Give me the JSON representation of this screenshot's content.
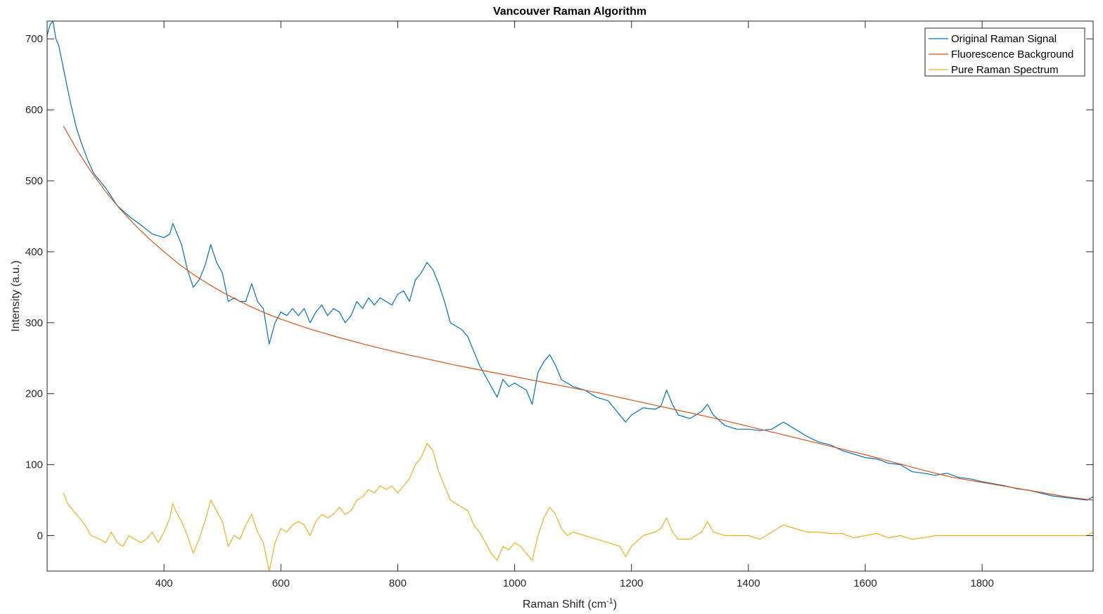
{
  "chart_data": {
    "type": "line",
    "title": "Vancouver Raman Algorithm",
    "xlabel": "Raman Shift (cm",
    "xlabel_sup": "-1",
    "xlabel_end": ")",
    "ylabel": "Intensity (a.u.)",
    "xlim": [
      200,
      1990
    ],
    "ylim": [
      -50,
      725
    ],
    "xticks": [
      400,
      600,
      800,
      1000,
      1200,
      1400,
      1600,
      1800
    ],
    "yticks": [
      0,
      100,
      200,
      300,
      400,
      500,
      600,
      700
    ],
    "legend_position": "top-right",
    "series": [
      {
        "name": "Original Raman Signal",
        "color": "#0072BD",
        "points": [
          [
            200,
            705
          ],
          [
            205,
            720
          ],
          [
            210,
            725
          ],
          [
            215,
            700
          ],
          [
            220,
            690
          ],
          [
            225,
            670
          ],
          [
            230,
            650
          ],
          [
            240,
            610
          ],
          [
            250,
            575
          ],
          [
            260,
            550
          ],
          [
            270,
            528
          ],
          [
            280,
            510
          ],
          [
            290,
            500
          ],
          [
            300,
            490
          ],
          [
            320,
            465
          ],
          [
            340,
            450
          ],
          [
            360,
            438
          ],
          [
            380,
            425
          ],
          [
            400,
            420
          ],
          [
            410,
            425
          ],
          [
            415,
            440
          ],
          [
            420,
            430
          ],
          [
            430,
            410
          ],
          [
            440,
            375
          ],
          [
            450,
            350
          ],
          [
            460,
            360
          ],
          [
            470,
            380
          ],
          [
            480,
            410
          ],
          [
            490,
            385
          ],
          [
            500,
            370
          ],
          [
            510,
            330
          ],
          [
            520,
            335
          ],
          [
            530,
            330
          ],
          [
            540,
            330
          ],
          [
            550,
            355
          ],
          [
            560,
            330
          ],
          [
            570,
            320
          ],
          [
            580,
            270
          ],
          [
            590,
            300
          ],
          [
            600,
            315
          ],
          [
            610,
            310
          ],
          [
            620,
            320
          ],
          [
            630,
            310
          ],
          [
            640,
            320
          ],
          [
            650,
            300
          ],
          [
            660,
            315
          ],
          [
            670,
            325
          ],
          [
            680,
            310
          ],
          [
            690,
            320
          ],
          [
            700,
            315
          ],
          [
            710,
            300
          ],
          [
            720,
            310
          ],
          [
            730,
            330
          ],
          [
            740,
            320
          ],
          [
            750,
            335
          ],
          [
            760,
            325
          ],
          [
            770,
            335
          ],
          [
            780,
            330
          ],
          [
            790,
            325
          ],
          [
            800,
            340
          ],
          [
            810,
            345
          ],
          [
            820,
            330
          ],
          [
            830,
            360
          ],
          [
            840,
            370
          ],
          [
            850,
            385
          ],
          [
            860,
            375
          ],
          [
            870,
            355
          ],
          [
            880,
            330
          ],
          [
            890,
            300
          ],
          [
            900,
            295
          ],
          [
            910,
            290
          ],
          [
            920,
            280
          ],
          [
            930,
            260
          ],
          [
            940,
            240
          ],
          [
            950,
            225
          ],
          [
            960,
            210
          ],
          [
            970,
            195
          ],
          [
            980,
            220
          ],
          [
            990,
            210
          ],
          [
            1000,
            215
          ],
          [
            1010,
            210
          ],
          [
            1020,
            205
          ],
          [
            1030,
            185
          ],
          [
            1040,
            230
          ],
          [
            1050,
            245
          ],
          [
            1060,
            255
          ],
          [
            1070,
            240
          ],
          [
            1080,
            220
          ],
          [
            1090,
            215
          ],
          [
            1100,
            210
          ],
          [
            1120,
            205
          ],
          [
            1140,
            195
          ],
          [
            1160,
            190
          ],
          [
            1180,
            170
          ],
          [
            1190,
            160
          ],
          [
            1200,
            170
          ],
          [
            1220,
            180
          ],
          [
            1240,
            178
          ],
          [
            1250,
            182
          ],
          [
            1260,
            205
          ],
          [
            1270,
            185
          ],
          [
            1280,
            170
          ],
          [
            1300,
            165
          ],
          [
            1320,
            175
          ],
          [
            1330,
            185
          ],
          [
            1340,
            170
          ],
          [
            1360,
            155
          ],
          [
            1380,
            150
          ],
          [
            1400,
            150
          ],
          [
            1420,
            148
          ],
          [
            1440,
            150
          ],
          [
            1460,
            160
          ],
          [
            1480,
            150
          ],
          [
            1500,
            140
          ],
          [
            1520,
            132
          ],
          [
            1540,
            128
          ],
          [
            1560,
            120
          ],
          [
            1580,
            115
          ],
          [
            1600,
            110
          ],
          [
            1620,
            108
          ],
          [
            1640,
            102
          ],
          [
            1660,
            100
          ],
          [
            1680,
            90
          ],
          [
            1700,
            88
          ],
          [
            1720,
            85
          ],
          [
            1740,
            88
          ],
          [
            1760,
            82
          ],
          [
            1780,
            80
          ],
          [
            1800,
            76
          ],
          [
            1820,
            73
          ],
          [
            1840,
            70
          ],
          [
            1860,
            66
          ],
          [
            1880,
            64
          ],
          [
            1900,
            60
          ],
          [
            1920,
            56
          ],
          [
            1940,
            54
          ],
          [
            1960,
            52
          ],
          [
            1980,
            50
          ],
          [
            1990,
            55
          ]
        ]
      },
      {
        "name": "Fluorescence Background",
        "color": "#D95319",
        "points": [
          [
            228,
            577
          ],
          [
            250,
            545
          ],
          [
            275,
            513
          ],
          [
            300,
            485
          ],
          [
            325,
            460
          ],
          [
            350,
            438
          ],
          [
            375,
            418
          ],
          [
            400,
            400
          ],
          [
            425,
            383
          ],
          [
            450,
            368
          ],
          [
            475,
            355
          ],
          [
            500,
            343
          ],
          [
            525,
            332
          ],
          [
            550,
            322
          ],
          [
            575,
            313
          ],
          [
            600,
            305
          ],
          [
            650,
            291
          ],
          [
            700,
            279
          ],
          [
            750,
            268
          ],
          [
            800,
            258
          ],
          [
            850,
            249
          ],
          [
            900,
            240
          ],
          [
            950,
            232
          ],
          [
            1000,
            224
          ],
          [
            1050,
            216
          ],
          [
            1100,
            208
          ],
          [
            1150,
            200
          ],
          [
            1200,
            191
          ],
          [
            1250,
            182
          ],
          [
            1300,
            173
          ],
          [
            1350,
            164
          ],
          [
            1400,
            154
          ],
          [
            1450,
            144
          ],
          [
            1500,
            134
          ],
          [
            1550,
            124
          ],
          [
            1600,
            114
          ],
          [
            1650,
            103
          ],
          [
            1700,
            92
          ],
          [
            1750,
            82
          ],
          [
            1800,
            75
          ],
          [
            1850,
            68
          ],
          [
            1900,
            61
          ],
          [
            1950,
            54
          ],
          [
            1990,
            50
          ]
        ]
      },
      {
        "name": "Pure Raman Spectrum",
        "color": "#EDB120",
        "points": [
          [
            228,
            60
          ],
          [
            235,
            45
          ],
          [
            245,
            35
          ],
          [
            255,
            25
          ],
          [
            265,
            15
          ],
          [
            275,
            0
          ],
          [
            290,
            -5
          ],
          [
            300,
            -10
          ],
          [
            310,
            5
          ],
          [
            320,
            -10
          ],
          [
            330,
            -15
          ],
          [
            340,
            0
          ],
          [
            350,
            -5
          ],
          [
            360,
            -10
          ],
          [
            370,
            -5
          ],
          [
            380,
            5
          ],
          [
            390,
            -10
          ],
          [
            400,
            5
          ],
          [
            410,
            25
          ],
          [
            415,
            45
          ],
          [
            420,
            35
          ],
          [
            430,
            20
          ],
          [
            440,
            0
          ],
          [
            450,
            -25
          ],
          [
            460,
            -5
          ],
          [
            470,
            20
          ],
          [
            480,
            50
          ],
          [
            490,
            35
          ],
          [
            500,
            20
          ],
          [
            510,
            -15
          ],
          [
            520,
            0
          ],
          [
            530,
            -5
          ],
          [
            540,
            15
          ],
          [
            550,
            30
          ],
          [
            560,
            5
          ],
          [
            570,
            -10
          ],
          [
            580,
            -50
          ],
          [
            590,
            -10
          ],
          [
            600,
            10
          ],
          [
            610,
            5
          ],
          [
            620,
            15
          ],
          [
            630,
            20
          ],
          [
            640,
            15
          ],
          [
            650,
            0
          ],
          [
            660,
            20
          ],
          [
            670,
            30
          ],
          [
            680,
            25
          ],
          [
            690,
            30
          ],
          [
            700,
            40
          ],
          [
            710,
            30
          ],
          [
            720,
            35
          ],
          [
            730,
            50
          ],
          [
            740,
            55
          ],
          [
            750,
            65
          ],
          [
            760,
            60
          ],
          [
            770,
            70
          ],
          [
            780,
            65
          ],
          [
            790,
            70
          ],
          [
            800,
            60
          ],
          [
            810,
            70
          ],
          [
            820,
            80
          ],
          [
            830,
            100
          ],
          [
            840,
            110
          ],
          [
            850,
            130
          ],
          [
            860,
            120
          ],
          [
            870,
            90
          ],
          [
            880,
            70
          ],
          [
            890,
            50
          ],
          [
            900,
            45
          ],
          [
            910,
            40
          ],
          [
            920,
            35
          ],
          [
            930,
            15
          ],
          [
            940,
            5
          ],
          [
            950,
            -10
          ],
          [
            960,
            -25
          ],
          [
            970,
            -35
          ],
          [
            980,
            -15
          ],
          [
            990,
            -20
          ],
          [
            1000,
            -10
          ],
          [
            1010,
            -15
          ],
          [
            1020,
            -25
          ],
          [
            1030,
            -35
          ],
          [
            1040,
            0
          ],
          [
            1050,
            25
          ],
          [
            1060,
            40
          ],
          [
            1070,
            30
          ],
          [
            1080,
            10
          ],
          [
            1090,
            0
          ],
          [
            1100,
            5
          ],
          [
            1120,
            0
          ],
          [
            1140,
            -5
          ],
          [
            1160,
            -10
          ],
          [
            1180,
            -15
          ],
          [
            1190,
            -30
          ],
          [
            1200,
            -15
          ],
          [
            1220,
            0
          ],
          [
            1240,
            5
          ],
          [
            1250,
            10
          ],
          [
            1260,
            25
          ],
          [
            1270,
            5
          ],
          [
            1280,
            -5
          ],
          [
            1300,
            -5
          ],
          [
            1320,
            5
          ],
          [
            1330,
            20
          ],
          [
            1340,
            5
          ],
          [
            1360,
            0
          ],
          [
            1380,
            0
          ],
          [
            1400,
            0
          ],
          [
            1420,
            -5
          ],
          [
            1440,
            5
          ],
          [
            1460,
            15
          ],
          [
            1480,
            10
          ],
          [
            1500,
            5
          ],
          [
            1520,
            5
          ],
          [
            1540,
            3
          ],
          [
            1560,
            3
          ],
          [
            1580,
            -3
          ],
          [
            1600,
            0
          ],
          [
            1620,
            3
          ],
          [
            1640,
            -3
          ],
          [
            1660,
            0
          ],
          [
            1680,
            -5
          ],
          [
            1700,
            -3
          ],
          [
            1720,
            0
          ],
          [
            1740,
            0
          ],
          [
            1760,
            0
          ],
          [
            1780,
            0
          ],
          [
            1800,
            0
          ],
          [
            1820,
            0
          ],
          [
            1840,
            0
          ],
          [
            1860,
            0
          ],
          [
            1880,
            0
          ],
          [
            1900,
            0
          ],
          [
            1920,
            0
          ],
          [
            1940,
            0
          ],
          [
            1960,
            0
          ],
          [
            1980,
            0
          ],
          [
            1990,
            5
          ]
        ]
      }
    ]
  }
}
